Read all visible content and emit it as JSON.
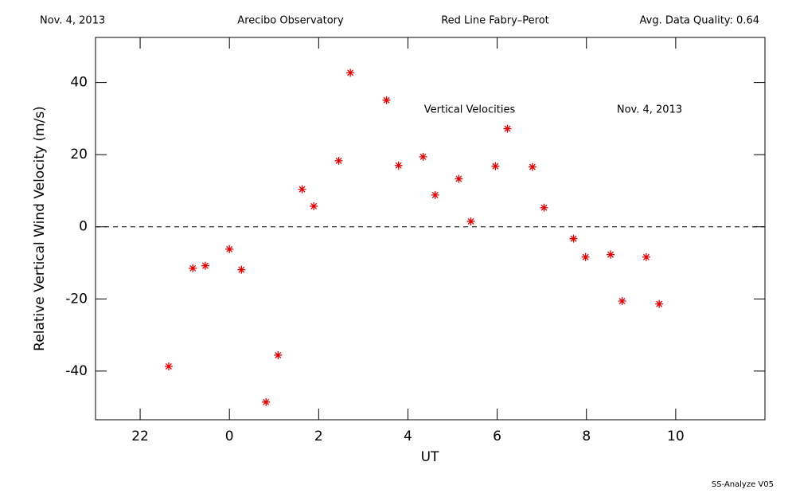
{
  "chart_data": {
    "type": "scatter",
    "header": [
      "Nov. 4, 2013",
      "Arecibo Observatory",
      "Red Line Fabry–Perot",
      "Avg. Data Quality: 0.64"
    ],
    "annotations": [
      "Vertical Velocities",
      "Nov. 4, 2013"
    ],
    "footer": "SS-Analyze V05",
    "x_label": "UT",
    "y_label": "Relative Vertical Wind Velocity (m/s)",
    "xlim": [
      -3,
      12
    ],
    "xticks": [
      {
        "value": -2,
        "label": "22"
      },
      0,
      2,
      4,
      6,
      8,
      10
    ],
    "ylim": [
      -53.5,
      52.5
    ],
    "yticks": [
      -40,
      -20,
      0,
      20,
      40
    ],
    "zero_line": true,
    "series": [
      {
        "color": "#e00000",
        "x": [
          -1.36,
          -0.82,
          -0.54,
          0.0,
          0.27,
          0.82,
          1.09,
          1.63,
          1.89,
          2.45,
          2.71,
          3.52,
          3.79,
          4.34,
          4.61,
          5.14,
          5.41,
          5.96,
          6.23,
          6.79,
          7.05,
          7.71,
          7.98,
          8.54,
          8.8,
          9.34,
          9.63
        ],
        "values": [
          -38.7,
          -11.5,
          -10.8,
          -6.2,
          -11.9,
          -48.6,
          -35.6,
          10.4,
          5.7,
          18.3,
          42.7,
          35.1,
          17.0,
          19.4,
          8.8,
          13.3,
          1.5,
          16.8,
          27.2,
          16.6,
          5.3,
          -3.3,
          -8.4,
          -7.7,
          -20.6,
          -8.4,
          -21.4
        ]
      }
    ]
  }
}
